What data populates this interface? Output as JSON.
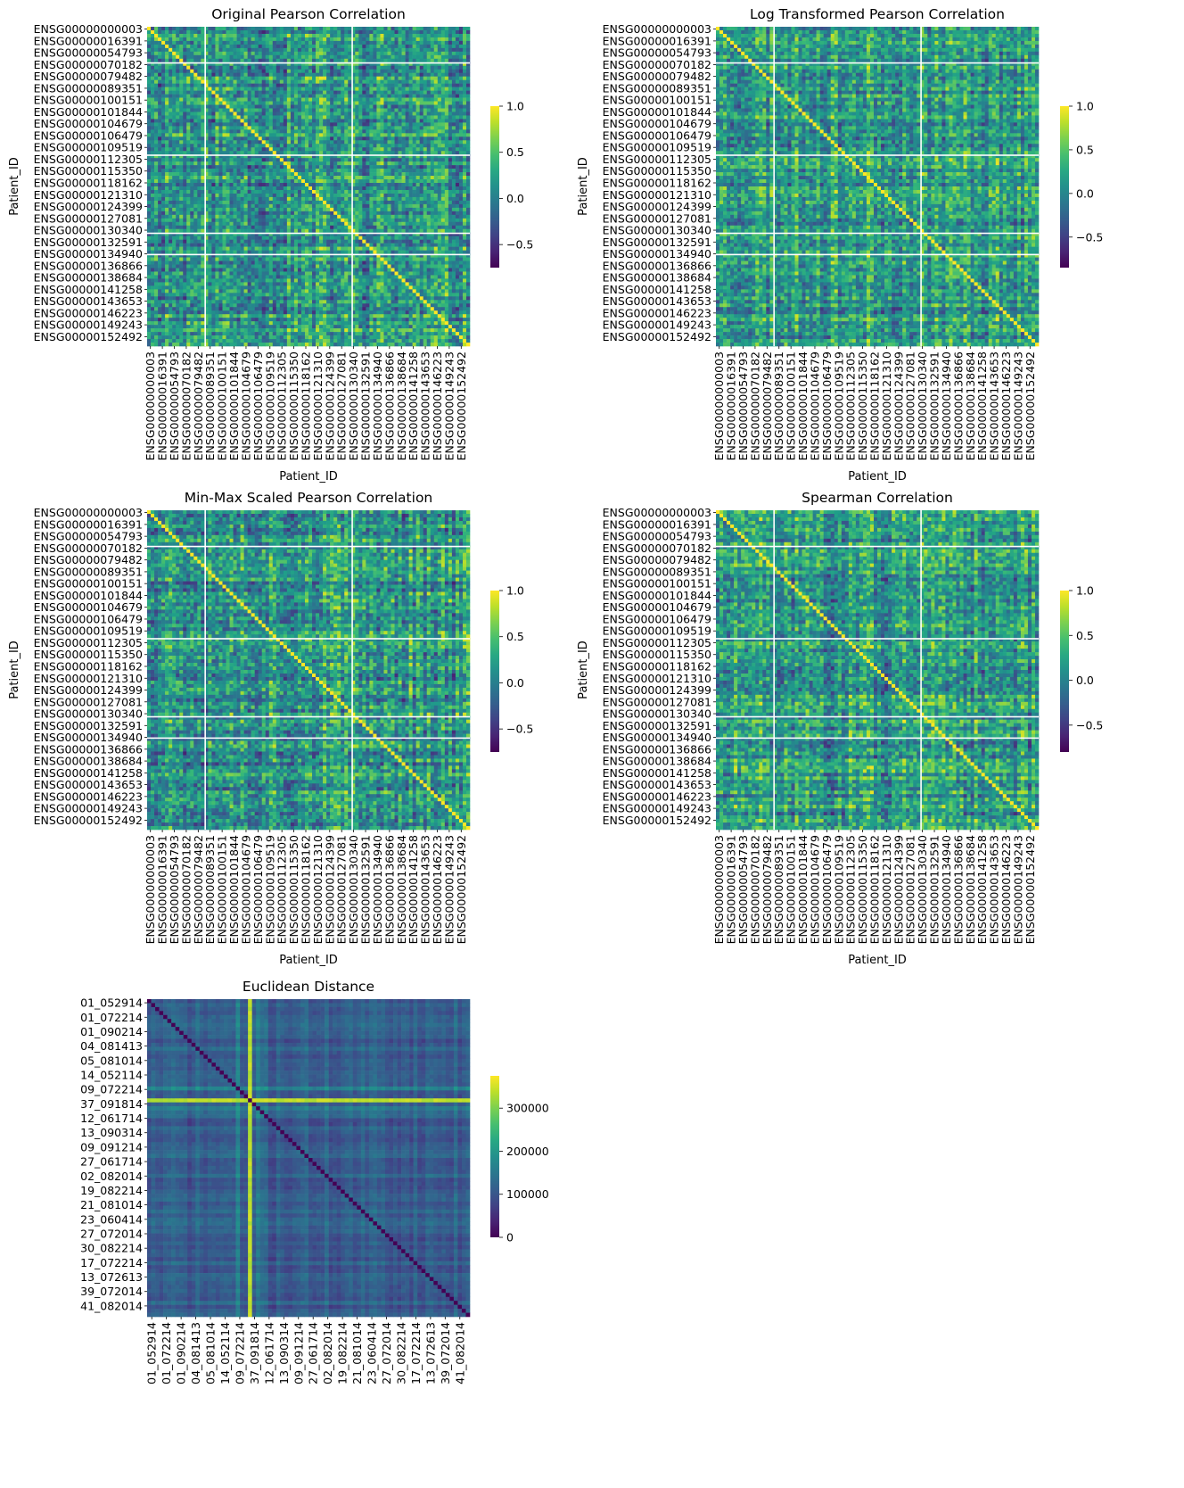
{
  "chart_data": [
    {
      "type": "heatmap",
      "title": "Original Pearson Correlation",
      "xlabel": "Patient_ID",
      "ylabel": "Patient_ID",
      "row_labels": [
        "ENSG00000000003",
        "ENSG00000016391",
        "ENSG00000054793",
        "ENSG00000070182",
        "ENSG00000079482",
        "ENSG00000089351",
        "ENSG00000100151",
        "ENSG00000101844",
        "ENSG00000104679",
        "ENSG00000106479",
        "ENSG00000109519",
        "ENSG00000112305",
        "ENSG00000115350",
        "ENSG00000118162",
        "ENSG00000121310",
        "ENSG00000124399",
        "ENSG00000127081",
        "ENSG00000130340",
        "ENSG00000132591",
        "ENSG00000134940",
        "ENSG00000136866",
        "ENSG00000138684",
        "ENSG00000141258",
        "ENSG00000143653",
        "ENSG00000146223",
        "ENSG00000149243",
        "ENSG00000152492"
      ],
      "col_labels": [
        "ENSG00000000003",
        "ENSG00000016391",
        "ENSG00000054793",
        "ENSG00000070182",
        "ENSG00000079482",
        "ENSG00000089351",
        "ENSG00000100151",
        "ENSG00000101844",
        "ENSG00000104679",
        "ENSG00000106479",
        "ENSG00000109519",
        "ENSG00000112305",
        "ENSG00000115350",
        "ENSG00000118162",
        "ENSG00000121310",
        "ENSG00000124399",
        "ENSG00000127081",
        "ENSG00000130340",
        "ENSG00000132591",
        "ENSG00000134940",
        "ENSG00000136866",
        "ENSG00000138684",
        "ENSG00000141258",
        "ENSG00000143653",
        "ENSG00000146223",
        "ENSG00000149243",
        "ENSG00000152492"
      ],
      "colormap": "viridis",
      "vmin": -0.75,
      "vmax": 1.0,
      "colorbar_ticks": [
        1.0,
        0.5,
        0.0,
        -0.5
      ],
      "colorbar_tick_labels": [
        "1.0",
        "0.5",
        "0.0",
        "−0.5"
      ],
      "value_range": [
        -0.75,
        1.0
      ]
    },
    {
      "type": "heatmap",
      "title": "Log Transformed Pearson Correlation",
      "xlabel": "Patient_ID",
      "ylabel": "Patient_ID",
      "row_labels": [
        "ENSG00000000003",
        "ENSG00000016391",
        "ENSG00000054793",
        "ENSG00000070182",
        "ENSG00000079482",
        "ENSG00000089351",
        "ENSG00000100151",
        "ENSG00000101844",
        "ENSG00000104679",
        "ENSG00000106479",
        "ENSG00000109519",
        "ENSG00000112305",
        "ENSG00000115350",
        "ENSG00000118162",
        "ENSG00000121310",
        "ENSG00000124399",
        "ENSG00000127081",
        "ENSG00000130340",
        "ENSG00000132591",
        "ENSG00000134940",
        "ENSG00000136866",
        "ENSG00000138684",
        "ENSG00000141258",
        "ENSG00000143653",
        "ENSG00000146223",
        "ENSG00000149243",
        "ENSG00000152492"
      ],
      "col_labels": [
        "ENSG00000000003",
        "ENSG00000016391",
        "ENSG00000054793",
        "ENSG00000070182",
        "ENSG00000079482",
        "ENSG00000089351",
        "ENSG00000100151",
        "ENSG00000101844",
        "ENSG00000104679",
        "ENSG00000106479",
        "ENSG00000109519",
        "ENSG00000112305",
        "ENSG00000115350",
        "ENSG00000118162",
        "ENSG00000121310",
        "ENSG00000124399",
        "ENSG00000127081",
        "ENSG00000130340",
        "ENSG00000132591",
        "ENSG00000134940",
        "ENSG00000136866",
        "ENSG00000138684",
        "ENSG00000141258",
        "ENSG00000143653",
        "ENSG00000146223",
        "ENSG00000149243",
        "ENSG00000152492"
      ],
      "colormap": "viridis",
      "vmin": -0.85,
      "vmax": 1.0,
      "colorbar_ticks": [
        1.0,
        0.5,
        0.0,
        -0.5
      ],
      "colorbar_tick_labels": [
        "1.0",
        "0.5",
        "0.0",
        "−0.5"
      ],
      "value_range": [
        -0.85,
        1.0
      ]
    },
    {
      "type": "heatmap",
      "title": "Min-Max Scaled Pearson Correlation",
      "xlabel": "Patient_ID",
      "ylabel": "Patient_ID",
      "row_labels": [
        "ENSG00000000003",
        "ENSG00000016391",
        "ENSG00000054793",
        "ENSG00000070182",
        "ENSG00000079482",
        "ENSG00000089351",
        "ENSG00000100151",
        "ENSG00000101844",
        "ENSG00000104679",
        "ENSG00000106479",
        "ENSG00000109519",
        "ENSG00000112305",
        "ENSG00000115350",
        "ENSG00000118162",
        "ENSG00000121310",
        "ENSG00000124399",
        "ENSG00000127081",
        "ENSG00000130340",
        "ENSG00000132591",
        "ENSG00000134940",
        "ENSG00000136866",
        "ENSG00000138684",
        "ENSG00000141258",
        "ENSG00000143653",
        "ENSG00000146223",
        "ENSG00000149243",
        "ENSG00000152492"
      ],
      "col_labels": [
        "ENSG00000000003",
        "ENSG00000016391",
        "ENSG00000054793",
        "ENSG00000070182",
        "ENSG00000079482",
        "ENSG00000089351",
        "ENSG00000100151",
        "ENSG00000101844",
        "ENSG00000104679",
        "ENSG00000106479",
        "ENSG00000109519",
        "ENSG00000112305",
        "ENSG00000115350",
        "ENSG00000118162",
        "ENSG00000121310",
        "ENSG00000124399",
        "ENSG00000127081",
        "ENSG00000130340",
        "ENSG00000132591",
        "ENSG00000134940",
        "ENSG00000136866",
        "ENSG00000138684",
        "ENSG00000141258",
        "ENSG00000143653",
        "ENSG00000146223",
        "ENSG00000149243",
        "ENSG00000152492"
      ],
      "colormap": "viridis",
      "vmin": -0.75,
      "vmax": 1.0,
      "colorbar_ticks": [
        1.0,
        0.5,
        0.0,
        -0.5
      ],
      "colorbar_tick_labels": [
        "1.0",
        "0.5",
        "0.0",
        "−0.5"
      ],
      "value_range": [
        -0.75,
        1.0
      ]
    },
    {
      "type": "heatmap",
      "title": "Spearman Correlation",
      "xlabel": "Patient_ID",
      "ylabel": "Patient_ID",
      "row_labels": [
        "ENSG00000000003",
        "ENSG00000016391",
        "ENSG00000054793",
        "ENSG00000070182",
        "ENSG00000079482",
        "ENSG00000089351",
        "ENSG00000100151",
        "ENSG00000101844",
        "ENSG00000104679",
        "ENSG00000106479",
        "ENSG00000109519",
        "ENSG00000112305",
        "ENSG00000115350",
        "ENSG00000118162",
        "ENSG00000121310",
        "ENSG00000124399",
        "ENSG00000127081",
        "ENSG00000130340",
        "ENSG00000132591",
        "ENSG00000134940",
        "ENSG00000136866",
        "ENSG00000138684",
        "ENSG00000141258",
        "ENSG00000143653",
        "ENSG00000146223",
        "ENSG00000149243",
        "ENSG00000152492"
      ],
      "col_labels": [
        "ENSG00000000003",
        "ENSG00000016391",
        "ENSG00000054793",
        "ENSG00000070182",
        "ENSG00000079482",
        "ENSG00000089351",
        "ENSG00000100151",
        "ENSG00000101844",
        "ENSG00000104679",
        "ENSG00000106479",
        "ENSG00000109519",
        "ENSG00000112305",
        "ENSG00000115350",
        "ENSG00000118162",
        "ENSG00000121310",
        "ENSG00000124399",
        "ENSG00000127081",
        "ENSG00000130340",
        "ENSG00000132591",
        "ENSG00000134940",
        "ENSG00000136866",
        "ENSG00000138684",
        "ENSG00000141258",
        "ENSG00000143653",
        "ENSG00000146223",
        "ENSG00000149243",
        "ENSG00000152492"
      ],
      "colormap": "viridis",
      "vmin": -0.8,
      "vmax": 1.0,
      "colorbar_ticks": [
        1.0,
        0.5,
        0.0,
        -0.5
      ],
      "colorbar_tick_labels": [
        "1.0",
        "0.5",
        "0.0",
        "−0.5"
      ],
      "value_range": [
        -0.8,
        1.0
      ]
    },
    {
      "type": "heatmap",
      "title": "Euclidean Distance",
      "xlabel": "",
      "ylabel": "",
      "row_labels": [
        "01_052914",
        "01_072214",
        "01_090214",
        "04_081413",
        "05_081014",
        "14_052114",
        "09_072214",
        "37_091814",
        "12_061714",
        "13_090314",
        "09_091214",
        "27_061714",
        "02_082014",
        "19_082214",
        "21_081014",
        "23_060414",
        "27_072014",
        "30_082214",
        "17_072214",
        "13_072613",
        "39_072014",
        "41_082014"
      ],
      "col_labels": [
        "01_052914",
        "01_072214",
        "01_090214",
        "04_081413",
        "05_081014",
        "14_052114",
        "09_072214",
        "37_091814",
        "12_061714",
        "13_090314",
        "09_091214",
        "27_061714",
        "02_082014",
        "19_082214",
        "21_081014",
        "23_060414",
        "27_072014",
        "30_082214",
        "17_072214",
        "13_072613",
        "39_072014",
        "41_082014"
      ],
      "colormap": "viridis",
      "vmin": 0,
      "vmax": 375000,
      "colorbar_ticks": [
        300000,
        200000,
        100000,
        0
      ],
      "colorbar_tick_labels": [
        "300000",
        "200000",
        "100000",
        "0"
      ],
      "value_range": [
        0,
        375000
      ],
      "diagonal": 0
    }
  ]
}
